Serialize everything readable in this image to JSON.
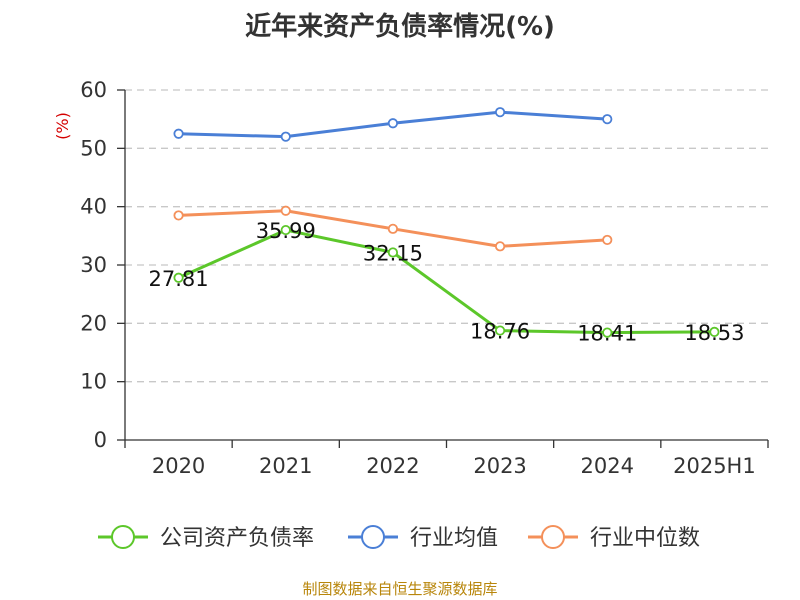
{
  "chart_data": {
    "type": "line",
    "title": "近年来资产负债率情况(%)",
    "ylabel": "(%)",
    "ylim": [
      0,
      60
    ],
    "yticks": [
      0,
      10,
      20,
      30,
      40,
      50,
      60
    ],
    "grid": true,
    "legend_position": "bottom",
    "categories": [
      "2020",
      "2021",
      "2022",
      "2023",
      "2024",
      "2025H1"
    ],
    "series": [
      {
        "name": "公司资产负债率",
        "color": "#5cc72a",
        "show_labels": true,
        "values": [
          27.81,
          35.99,
          32.15,
          18.76,
          18.41,
          18.53
        ]
      },
      {
        "name": "行业均值",
        "color": "#4a7fd6",
        "show_labels": false,
        "values": [
          52.5,
          52.0,
          54.3,
          56.2,
          55.0,
          null
        ]
      },
      {
        "name": "行业中位数",
        "color": "#f4905a",
        "show_labels": false,
        "values": [
          38.5,
          39.3,
          36.2,
          33.2,
          34.3,
          null
        ]
      }
    ]
  },
  "source": "制图数据来自恒生聚源数据库"
}
